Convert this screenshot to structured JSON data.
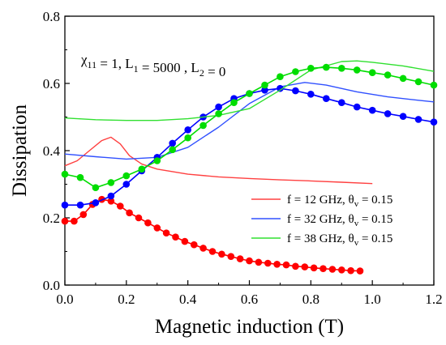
{
  "chart_data": {
    "type": "line",
    "xlabel": "Magnetic induction (T)",
    "ylabel": "Dissipation",
    "xlim": [
      0.0,
      1.2
    ],
    "ylim": [
      0.0,
      0.8
    ],
    "xticks": [
      "0.0",
      "0.2",
      "0.4",
      "0.6",
      "0.8",
      "1.0",
      "1.2"
    ],
    "yticks": [
      "0.0",
      "0.2",
      "0.4",
      "0.6",
      "0.8"
    ],
    "annotation": "χ11 = 1, L1 = 5000 , L2 = 0",
    "grid": false,
    "legend_position": "bottom-right",
    "series": [
      {
        "name": "f = 12 GHz, θv = 0.15",
        "style": "line",
        "color": "#ff4040",
        "points": [
          [
            0.0,
            0.355
          ],
          [
            0.04,
            0.37
          ],
          [
            0.08,
            0.4
          ],
          [
            0.12,
            0.43
          ],
          [
            0.15,
            0.44
          ],
          [
            0.18,
            0.42
          ],
          [
            0.21,
            0.385
          ],
          [
            0.25,
            0.36
          ],
          [
            0.3,
            0.345
          ],
          [
            0.4,
            0.33
          ],
          [
            0.5,
            0.322
          ],
          [
            0.6,
            0.317
          ],
          [
            0.7,
            0.313
          ],
          [
            0.8,
            0.31
          ],
          [
            0.9,
            0.306
          ],
          [
            1.0,
            0.302
          ]
        ]
      },
      {
        "name": "f = 12 GHz, θv = 0.15",
        "style": "markers",
        "color": "#ff0000",
        "points": [
          [
            0.0,
            0.19
          ],
          [
            0.03,
            0.19
          ],
          [
            0.06,
            0.21
          ],
          [
            0.09,
            0.24
          ],
          [
            0.12,
            0.255
          ],
          [
            0.15,
            0.25
          ],
          [
            0.18,
            0.235
          ],
          [
            0.21,
            0.215
          ],
          [
            0.24,
            0.2
          ],
          [
            0.27,
            0.185
          ],
          [
            0.3,
            0.17
          ],
          [
            0.33,
            0.155
          ],
          [
            0.36,
            0.143
          ],
          [
            0.39,
            0.13
          ],
          [
            0.42,
            0.12
          ],
          [
            0.45,
            0.11
          ],
          [
            0.48,
            0.1
          ],
          [
            0.51,
            0.092
          ],
          [
            0.54,
            0.085
          ],
          [
            0.57,
            0.078
          ],
          [
            0.6,
            0.072
          ],
          [
            0.63,
            0.068
          ],
          [
            0.66,
            0.065
          ],
          [
            0.69,
            0.062
          ],
          [
            0.72,
            0.06
          ],
          [
            0.75,
            0.056
          ],
          [
            0.78,
            0.054
          ],
          [
            0.81,
            0.051
          ],
          [
            0.84,
            0.049
          ],
          [
            0.87,
            0.047
          ],
          [
            0.9,
            0.045
          ],
          [
            0.93,
            0.043
          ],
          [
            0.96,
            0.042
          ]
        ]
      },
      {
        "name": "f = 32 GHz, θv = 0.15",
        "style": "line",
        "color": "#3050ff",
        "points": [
          [
            0.0,
            0.39
          ],
          [
            0.1,
            0.382
          ],
          [
            0.2,
            0.375
          ],
          [
            0.3,
            0.38
          ],
          [
            0.4,
            0.41
          ],
          [
            0.5,
            0.47
          ],
          [
            0.6,
            0.54
          ],
          [
            0.7,
            0.59
          ],
          [
            0.78,
            0.603
          ],
          [
            0.85,
            0.595
          ],
          [
            0.95,
            0.575
          ],
          [
            1.05,
            0.56
          ],
          [
            1.15,
            0.55
          ],
          [
            1.2,
            0.545
          ]
        ]
      },
      {
        "name": "f = 32 GHz, θv = 0.15",
        "style": "markers",
        "color": "#0000ff",
        "points": [
          [
            0.0,
            0.238
          ],
          [
            0.05,
            0.238
          ],
          [
            0.1,
            0.245
          ],
          [
            0.15,
            0.265
          ],
          [
            0.2,
            0.3
          ],
          [
            0.25,
            0.34
          ],
          [
            0.3,
            0.38
          ],
          [
            0.35,
            0.422
          ],
          [
            0.4,
            0.462
          ],
          [
            0.45,
            0.5
          ],
          [
            0.5,
            0.53
          ],
          [
            0.55,
            0.555
          ],
          [
            0.6,
            0.57
          ],
          [
            0.65,
            0.58
          ],
          [
            0.7,
            0.585
          ],
          [
            0.75,
            0.578
          ],
          [
            0.8,
            0.568
          ],
          [
            0.85,
            0.555
          ],
          [
            0.9,
            0.543
          ],
          [
            0.95,
            0.53
          ],
          [
            1.0,
            0.52
          ],
          [
            1.05,
            0.51
          ],
          [
            1.1,
            0.502
          ],
          [
            1.15,
            0.493
          ],
          [
            1.2,
            0.485
          ]
        ]
      },
      {
        "name": "f = 38 GHz, θv = 0.15",
        "style": "line",
        "color": "#30e030",
        "points": [
          [
            0.0,
            0.497
          ],
          [
            0.1,
            0.492
          ],
          [
            0.2,
            0.49
          ],
          [
            0.3,
            0.49
          ],
          [
            0.4,
            0.495
          ],
          [
            0.5,
            0.505
          ],
          [
            0.6,
            0.525
          ],
          [
            0.7,
            0.58
          ],
          [
            0.8,
            0.64
          ],
          [
            0.9,
            0.665
          ],
          [
            0.95,
            0.667
          ],
          [
            1.0,
            0.663
          ],
          [
            1.1,
            0.652
          ],
          [
            1.2,
            0.636
          ]
        ]
      },
      {
        "name": "f = 38 GHz, θv = 0.15",
        "style": "markers",
        "color": "#00dd00",
        "points": [
          [
            0.0,
            0.33
          ],
          [
            0.05,
            0.32
          ],
          [
            0.1,
            0.29
          ],
          [
            0.15,
            0.305
          ],
          [
            0.2,
            0.325
          ],
          [
            0.25,
            0.345
          ],
          [
            0.3,
            0.37
          ],
          [
            0.35,
            0.403
          ],
          [
            0.4,
            0.438
          ],
          [
            0.45,
            0.475
          ],
          [
            0.5,
            0.51
          ],
          [
            0.55,
            0.543
          ],
          [
            0.6,
            0.57
          ],
          [
            0.65,
            0.595
          ],
          [
            0.7,
            0.62
          ],
          [
            0.75,
            0.635
          ],
          [
            0.8,
            0.645
          ],
          [
            0.85,
            0.648
          ],
          [
            0.9,
            0.645
          ],
          [
            0.95,
            0.64
          ],
          [
            1.0,
            0.632
          ],
          [
            1.05,
            0.625
          ],
          [
            1.1,
            0.615
          ],
          [
            1.15,
            0.605
          ],
          [
            1.2,
            0.595
          ]
        ]
      }
    ],
    "legend": [
      {
        "label": "f = 12 GHz, θv = 0.15",
        "color": "#ff4040"
      },
      {
        "label": "f = 32 GHz, θv = 0.15",
        "color": "#3050ff"
      },
      {
        "label": "f = 38 GHz, θv = 0.15",
        "color": "#30e030"
      }
    ]
  }
}
